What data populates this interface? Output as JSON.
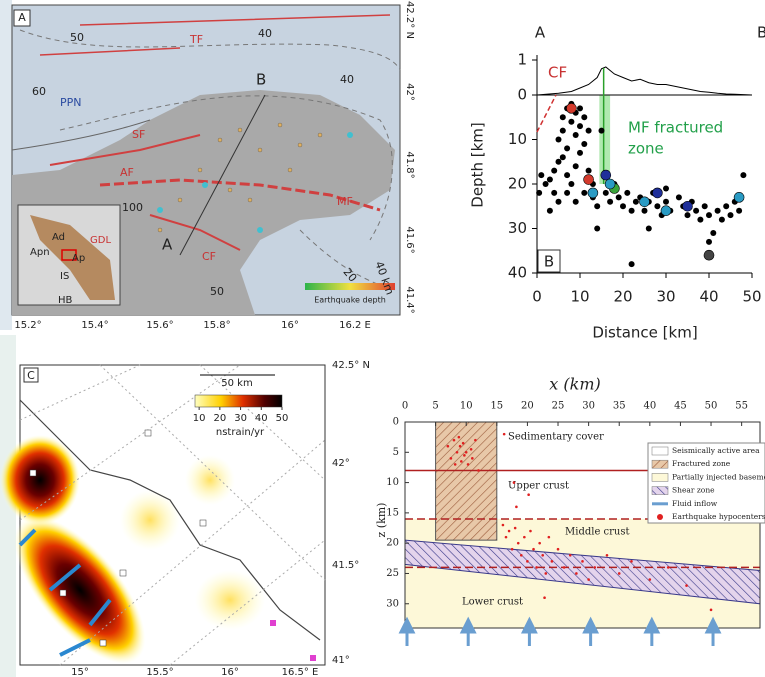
{
  "panel_a": {
    "label": "A",
    "map_labels": [
      "TF",
      "50",
      "40",
      "60",
      "PPN",
      "B",
      "40",
      "SF",
      "AF",
      "MF",
      "100",
      "CF",
      "A",
      "20",
      "40 km",
      "50"
    ],
    "lat_ticks": [
      "42.2° N",
      "42°",
      "41.8°",
      "41.6°",
      "41.4°"
    ],
    "lon_ticks": [
      "15.2°",
      "15.4°",
      "15.6°",
      "15.8°",
      "16°",
      "16.2 E"
    ],
    "legend_title": "Earthquake depth",
    "inset_labels": [
      "Ad",
      "Apn",
      "Ap",
      "GDL",
      "IS",
      "HB"
    ]
  },
  "panel_c": {
    "label": "C",
    "scale_bar": "50 km",
    "colorbar": {
      "clim": [
        8,
        50
      ],
      "ticks": [
        10,
        20,
        30,
        40,
        50
      ],
      "unit": "nstrain/yr"
    },
    "lat_ticks": [
      "42.5° N",
      "42°",
      "41.5°",
      "41°"
    ],
    "lon_ticks": [
      "15°",
      "15.5°",
      "16°",
      "16.5° E"
    ]
  },
  "chart_data": [
    {
      "type": "scatter",
      "profile_ends": [
        "A",
        "B"
      ],
      "xlabel": "Distance [km]",
      "ylabel": "Depth [km]",
      "xlim": [
        0,
        50
      ],
      "xticks": [
        0,
        10,
        20,
        30,
        40,
        50
      ],
      "ylim": [
        40,
        0
      ],
      "yticks": [
        0,
        10,
        20,
        30,
        40
      ],
      "topo_ylim": [
        0,
        1
      ],
      "topo_yticks": [
        1
      ],
      "annotations": [
        "CF",
        "MF fractured",
        "zone",
        "B"
      ],
      "highlight_x": [
        14.5,
        17
      ],
      "topography": {
        "color": "#000000",
        "x": [
          0,
          5,
          8,
          10,
          12,
          14,
          15,
          16,
          18,
          20,
          22,
          24,
          26,
          28,
          30,
          32,
          34,
          36,
          38,
          40,
          42,
          44,
          46,
          48,
          50
        ],
        "values": [
          0,
          0.05,
          0.1,
          0.2,
          0.3,
          0.5,
          0.75,
          0.8,
          0.6,
          0.5,
          0.4,
          0.45,
          0.35,
          0.3,
          0.3,
          0.25,
          0.2,
          0.15,
          0.1,
          0.08,
          0.05,
          0.03,
          0.02,
          0.01,
          0
        ]
      },
      "series": [
        {
          "color": "#000000",
          "x": [
            1,
            2,
            0.5,
            3,
            4,
            5,
            5,
            6,
            6,
            7,
            7,
            8,
            8,
            9,
            9,
            10,
            10,
            11,
            11,
            12,
            6,
            7,
            8,
            9,
            10,
            12,
            13,
            4,
            5,
            3,
            7,
            9,
            11,
            13,
            14,
            16,
            17,
            18,
            19,
            20,
            21,
            22,
            23,
            24,
            25,
            26,
            27,
            28,
            29,
            30,
            31,
            33,
            34,
            35,
            36,
            37,
            38,
            39,
            40,
            41,
            40,
            42,
            43,
            44,
            45,
            46,
            47,
            48,
            22,
            15,
            14,
            26,
            30
          ],
          "values": [
            18,
            20,
            22,
            19,
            17,
            15,
            10,
            5,
            8,
            3,
            12,
            2,
            6,
            4,
            9,
            3,
            7,
            5,
            11,
            8,
            14,
            18,
            20,
            16,
            13,
            17,
            20,
            22,
            24,
            26,
            22,
            24,
            22,
            23,
            25,
            22,
            24,
            20,
            23,
            25,
            22,
            26,
            24,
            23,
            26,
            24,
            22,
            25,
            27,
            24,
            26,
            23,
            25,
            27,
            24,
            26,
            28,
            25,
            27,
            31,
            33,
            26,
            28,
            25,
            27,
            24,
            26,
            18,
            38,
            8,
            30,
            30,
            21
          ]
        },
        {
          "colors": [
            "#d33a2c",
            "#2a9bc4",
            "#1f2f9a",
            "#3aa33a",
            "#2a9bc4",
            "#1f2f9a",
            "#2a9bc4",
            "#1f2f9a",
            "#444444",
            "#2a9bc4",
            "#d33a2c",
            "#2a9bc4"
          ],
          "x": [
            8,
            13,
            16,
            18,
            17,
            28,
            30,
            35,
            40,
            47,
            12,
            25
          ],
          "values": [
            3,
            22,
            18,
            21,
            20,
            22,
            26,
            25,
            36,
            23,
            19,
            24
          ]
        }
      ]
    },
    {
      "type": "cross_section",
      "title": "x (km)",
      "ylabel": "z (km)",
      "xlim": [
        0,
        58
      ],
      "xticks": [
        0,
        5,
        10,
        15,
        20,
        25,
        30,
        35,
        40,
        45,
        50,
        55
      ],
      "ylim": [
        34,
        0
      ],
      "yticks": [
        0,
        5,
        10,
        15,
        20,
        25,
        30
      ],
      "layer_labels": [
        "Sedimentary cover",
        "Upper crust",
        "Middle crust",
        "Lower crust"
      ],
      "interfaces": [
        {
          "depth": 8,
          "style": "solid"
        },
        {
          "depth": 16,
          "style": "dashed"
        },
        {
          "depth": 24,
          "style": "dashed"
        }
      ],
      "fractured_zone": {
        "x": [
          5,
          15
        ],
        "z": [
          0,
          19.5
        ]
      },
      "shear_zone": {
        "x": [
          0,
          58
        ],
        "top": [
          19.5,
          24.5
        ],
        "bottom": [
          23.5,
          30
        ]
      },
      "fluid_inflow_x": [
        0,
        10,
        20,
        30,
        40,
        50
      ],
      "legend": [
        {
          "label": "Seismically active area",
          "color": "#ffffff"
        },
        {
          "label": "Fractured zone",
          "color": "#e8c8a8"
        },
        {
          "label": "Partially injected basements",
          "color": "#fdf8d8"
        },
        {
          "label": "Shear zone",
          "color": "#d8c0e0"
        },
        {
          "label": "Fluid inflow",
          "color": "#6a9ed0"
        },
        {
          "label": "Earthquake hypocenters",
          "color": "#e02020"
        }
      ],
      "points": {
        "color": "#e02020",
        "x": [
          7,
          7.5,
          8,
          8.2,
          8.5,
          9,
          9.2,
          9.5,
          10,
          10.3,
          10.8,
          11,
          11.5,
          12,
          8.8,
          9.7,
          16,
          16.5,
          17,
          17.5,
          18,
          18.5,
          19,
          19.5,
          20,
          20.5,
          21,
          21.5,
          22,
          22.5,
          23,
          23.5,
          24,
          25,
          26,
          27,
          28,
          29,
          30,
          31,
          33,
          35,
          37,
          40,
          43,
          46,
          50,
          16.2,
          17.8,
          18.2,
          20.2,
          22.8
        ],
        "values": [
          4,
          6,
          3,
          7,
          5,
          4,
          6.5,
          3.5,
          5,
          7,
          4.5,
          6,
          3,
          8,
          2.5,
          5.5,
          17,
          19,
          18,
          21,
          17.5,
          20,
          22,
          19,
          23,
          18,
          21,
          24,
          20,
          22,
          25,
          19,
          23,
          21,
          24,
          22,
          25,
          23,
          26,
          24,
          22,
          25,
          23,
          26,
          24,
          27,
          31,
          2,
          10,
          14,
          12,
          29
        ]
      }
    }
  ]
}
